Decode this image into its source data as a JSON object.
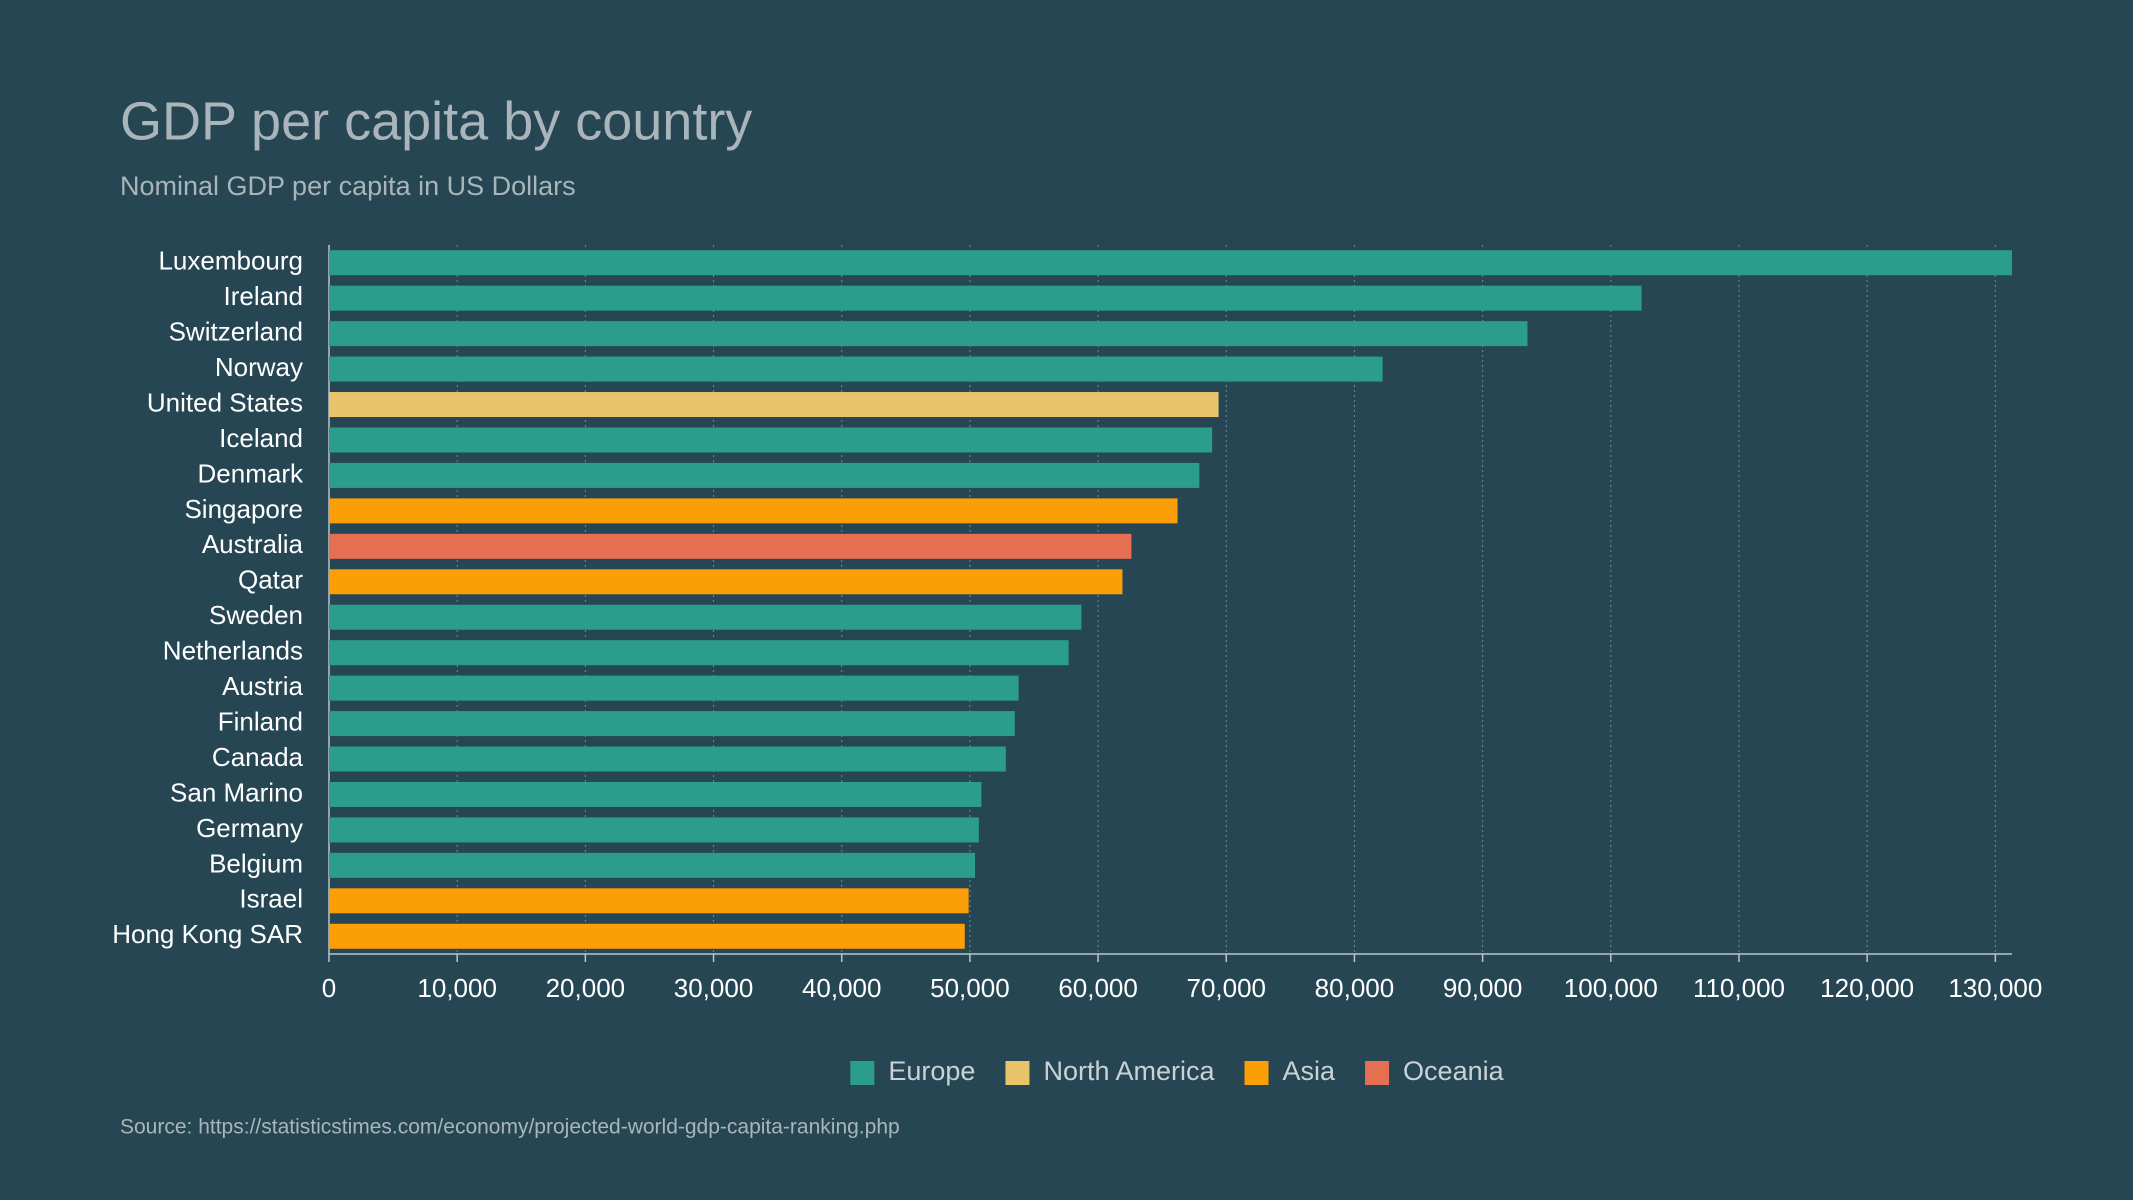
{
  "chart_data": {
    "type": "bar",
    "orientation": "horizontal",
    "title": "GDP per capita by country",
    "subtitle": "Nominal GDP per capita in US Dollars",
    "source": "Source: https://statisticstimes.com/economy/projected-world-gdp-capita-ranking.php",
    "categories": [
      "Luxembourg",
      "Ireland",
      "Switzerland",
      "Norway",
      "United States",
      "Iceland",
      "Denmark",
      "Singapore",
      "Australia",
      "Qatar",
      "Sweden",
      "Netherlands",
      "Austria",
      "Finland",
      "Canada",
      "San Marino",
      "Germany",
      "Belgium",
      "Israel",
      "Hong Kong SAR"
    ],
    "series": [
      {
        "name": "Europe",
        "color": "#2a9d8f",
        "values": [
          131300,
          102400,
          93500,
          82200,
          null,
          68900,
          67900,
          null,
          null,
          null,
          58700,
          57700,
          53800,
          53500,
          52800,
          50900,
          50700,
          50400,
          null,
          null
        ]
      },
      {
        "name": "North America",
        "color": "#e9c46a",
        "values": [
          null,
          null,
          null,
          null,
          69400,
          null,
          null,
          null,
          null,
          null,
          null,
          null,
          null,
          null,
          null,
          null,
          null,
          null,
          null,
          null
        ]
      },
      {
        "name": "Asia",
        "color": "#fb9e07",
        "values": [
          null,
          null,
          null,
          null,
          null,
          null,
          null,
          66200,
          null,
          61900,
          null,
          null,
          null,
          null,
          null,
          null,
          null,
          null,
          49900,
          49600
        ]
      },
      {
        "name": "Oceania",
        "color": "#e76f51",
        "values": [
          null,
          null,
          null,
          null,
          null,
          null,
          null,
          null,
          62600,
          null,
          null,
          null,
          null,
          null,
          null,
          null,
          null,
          null,
          null,
          null
        ]
      }
    ],
    "xlim": [
      0,
      131300
    ],
    "xticks": [
      0,
      {
        "value": 10000,
        "label": "10,000"
      },
      {
        "value": 20000,
        "label": "20,000"
      },
      {
        "value": 30000,
        "label": "30,000"
      },
      {
        "value": 40000,
        "label": "40,000"
      },
      {
        "value": 50000,
        "label": "50,000"
      },
      {
        "value": 60000,
        "label": "60,000"
      },
      {
        "value": 70000,
        "label": "70,000"
      },
      {
        "value": 80000,
        "label": "80,000"
      },
      {
        "value": 90000,
        "label": "90,000"
      },
      {
        "value": 100000,
        "label": "100,000"
      },
      {
        "value": 110000,
        "label": "110,000"
      },
      {
        "value": 120000,
        "label": "120,000"
      },
      {
        "value": 130000,
        "label": "130,000"
      }
    ],
    "grid": true,
    "legend": "bottom"
  }
}
